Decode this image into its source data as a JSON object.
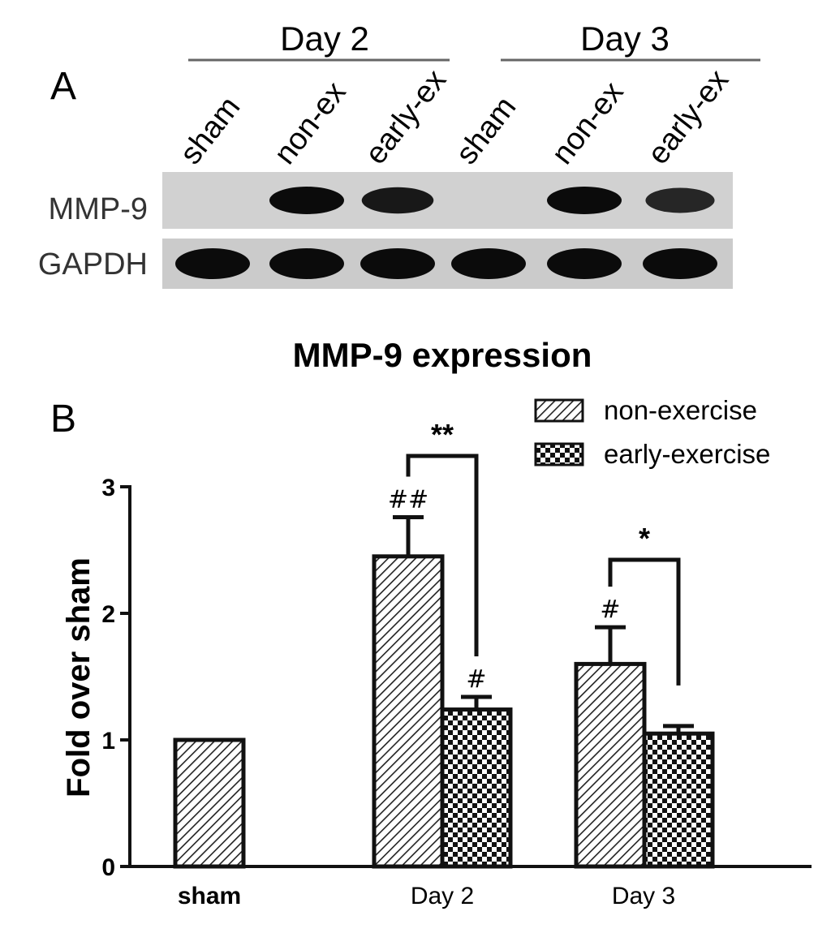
{
  "panel_a": {
    "panel_label": "A",
    "day_groups": [
      "Day 2",
      "Day 3"
    ],
    "lanes": [
      "sham",
      "non-ex",
      "early-ex",
      "sham",
      "non-ex",
      "early-ex"
    ],
    "rows": [
      {
        "label": "MMP-9",
        "band_intensity": [
          0,
          1,
          0.85,
          0,
          1,
          0.7
        ]
      },
      {
        "label": "GAPDH",
        "band_intensity": [
          1,
          1,
          1,
          1,
          1,
          1
        ]
      }
    ]
  },
  "panel_b": {
    "panel_label": "B"
  },
  "chart_data": {
    "type": "bar",
    "title": "MMP-9 expression",
    "xlabel": "",
    "ylabel": "Fold over sham",
    "categories": [
      "sham",
      "Day 2",
      "Day 3"
    ],
    "ylim": [
      0,
      3
    ],
    "yticks": [
      "0",
      "1",
      "2",
      "3"
    ],
    "series": [
      {
        "name": "non-exercise",
        "pattern": "diagonal-hatch",
        "values": [
          1.0,
          2.45,
          1.6
        ],
        "errors": [
          0,
          0.31,
          0.29
        ],
        "marks": [
          "",
          "##",
          "#"
        ]
      },
      {
        "name": "early-exercise",
        "pattern": "checkerboard",
        "values": [
          null,
          1.24,
          1.05
        ],
        "errors": [
          null,
          0.1,
          0.06
        ],
        "marks": [
          "",
          "#",
          ""
        ]
      }
    ],
    "significance": [
      {
        "category": "Day 2",
        "label": "**"
      },
      {
        "category": "Day 3",
        "label": "*"
      }
    ],
    "legend_position": "top-right",
    "grid": false
  }
}
